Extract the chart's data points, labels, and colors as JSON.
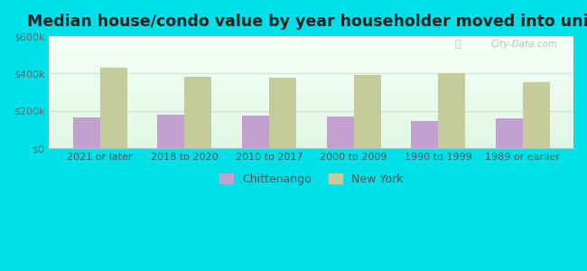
{
  "title": "Median house/condo value by year householder moved into unit",
  "categories": [
    "2021 or later",
    "2018 to 2020",
    "2010 to 2017",
    "2000 to 2009",
    "1990 to 1999",
    "1989 or earlier"
  ],
  "chittenango_values": [
    165000,
    182000,
    175000,
    172000,
    148000,
    160000
  ],
  "newyork_values": [
    430000,
    385000,
    380000,
    392000,
    403000,
    352000
  ],
  "chittenango_color": "#c4a0d0",
  "newyork_color": "#c5cc9a",
  "bar_width": 0.32,
  "ylim": [
    0,
    600000
  ],
  "yticks": [
    0,
    200000,
    400000,
    600000
  ],
  "ytick_labels": [
    "$0",
    "$200k",
    "$400k",
    "$600k"
  ],
  "outer_background": "#00e0e8",
  "grid_color": "#e8f5e8",
  "title_fontsize": 12.5,
  "tick_fontsize": 8,
  "legend_labels": [
    "Chittenango",
    "New York"
  ],
  "watermark": "City-Data.com"
}
